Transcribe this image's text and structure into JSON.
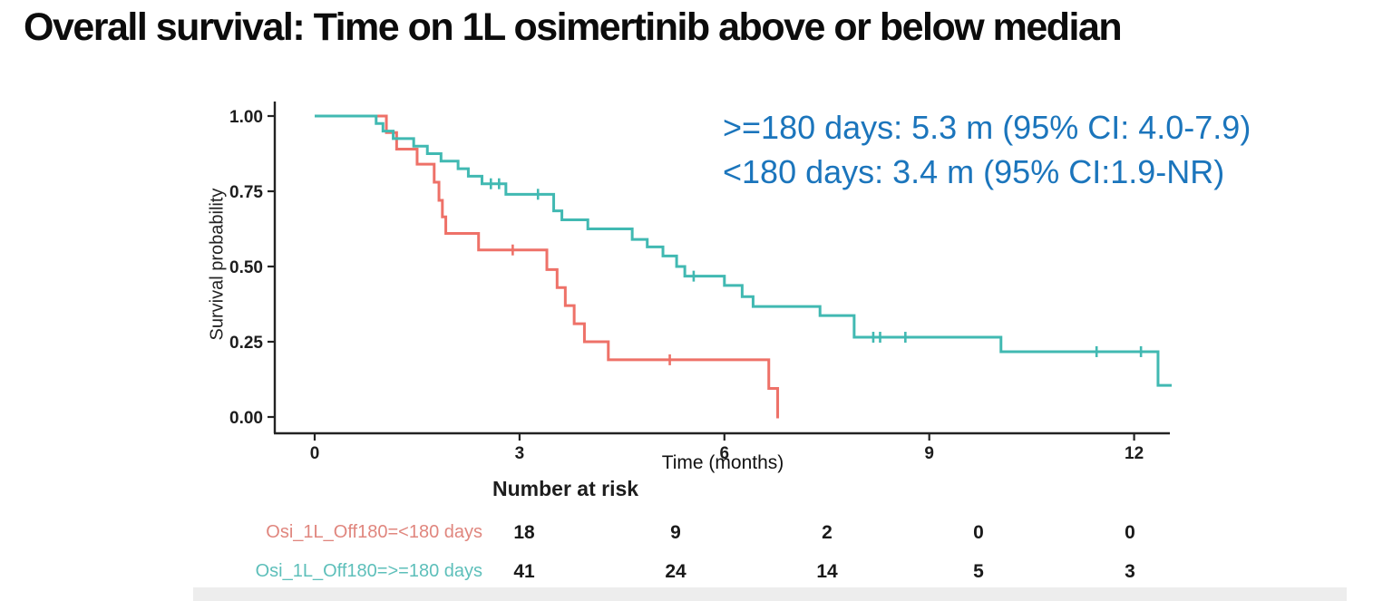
{
  "slide": {
    "title": "Overall survival: Time on 1L osimertinib above or below median",
    "annotation": {
      "color": "#1b75bc",
      "line1": ">=180 days: 5.3 m (95% CI: 4.0-7.9)",
      "line2": "<180 days: 3.4 m (95% CI:1.9-NR)"
    }
  },
  "chart_data": {
    "type": "line",
    "subtype": "kaplan-meier-step",
    "title": "",
    "xlabel": "Time (months)",
    "ylabel": "Survival probability",
    "xlim": [
      0,
      12.6
    ],
    "ylim": [
      0,
      1
    ],
    "x_ticks": [
      0,
      3,
      6,
      9,
      12
    ],
    "y_ticks": [
      "0.00",
      "0.25",
      "0.50",
      "0.75",
      "1.00"
    ],
    "y_tick_values": [
      0,
      0.25,
      0.5,
      0.75,
      1.0
    ],
    "grid": false,
    "legend_position": "none",
    "axis_color": "#232323",
    "series": [
      {
        "name": "Osi_1L_Off180=<180 days",
        "group": "<180 days",
        "median_months": 3.4,
        "ci_95": "1.9-NR",
        "color": "#ee7168",
        "end_t": 6.8,
        "steps": [
          [
            0,
            1.0
          ],
          [
            1.05,
            0.945
          ],
          [
            1.2,
            0.89
          ],
          [
            1.5,
            0.84
          ],
          [
            1.75,
            0.78
          ],
          [
            1.82,
            0.72
          ],
          [
            1.87,
            0.665
          ],
          [
            1.92,
            0.61
          ],
          [
            2.4,
            0.555
          ],
          [
            3.4,
            0.49
          ],
          [
            3.55,
            0.43
          ],
          [
            3.67,
            0.37
          ],
          [
            3.8,
            0.31
          ],
          [
            3.95,
            0.25
          ],
          [
            4.3,
            0.19
          ],
          [
            6.65,
            0.095
          ],
          [
            6.78,
            0.0
          ]
        ],
        "censors": [
          [
            2.9,
            0.555
          ],
          [
            5.2,
            0.19
          ]
        ]
      },
      {
        "name": "Osi_1L_Off180=>=180 days",
        "group": ">=180 days",
        "median_months": 5.3,
        "ci_95": "4.0-7.9",
        "color": "#41b9b2",
        "end_t": 12.55,
        "steps": [
          [
            0,
            1.0
          ],
          [
            0.9,
            0.975
          ],
          [
            1.0,
            0.95
          ],
          [
            1.15,
            0.925
          ],
          [
            1.45,
            0.9
          ],
          [
            1.65,
            0.875
          ],
          [
            1.85,
            0.85
          ],
          [
            2.1,
            0.825
          ],
          [
            2.25,
            0.8
          ],
          [
            2.45,
            0.775
          ],
          [
            2.8,
            0.74
          ],
          [
            3.5,
            0.685
          ],
          [
            3.62,
            0.655
          ],
          [
            4.0,
            0.625
          ],
          [
            4.65,
            0.59
          ],
          [
            4.87,
            0.565
          ],
          [
            5.1,
            0.535
          ],
          [
            5.3,
            0.5
          ],
          [
            5.42,
            0.468
          ],
          [
            6.0,
            0.437
          ],
          [
            6.26,
            0.4
          ],
          [
            6.42,
            0.367
          ],
          [
            7.4,
            0.337
          ],
          [
            7.9,
            0.265
          ],
          [
            10.05,
            0.217
          ],
          [
            12.35,
            0.105
          ]
        ],
        "censors": [
          [
            2.58,
            0.775
          ],
          [
            2.7,
            0.775
          ],
          [
            3.27,
            0.74
          ],
          [
            5.55,
            0.468
          ],
          [
            8.18,
            0.265
          ],
          [
            8.28,
            0.265
          ],
          [
            8.65,
            0.265
          ],
          [
            11.45,
            0.217
          ],
          [
            12.1,
            0.217
          ]
        ]
      }
    ],
    "risk_table": {
      "heading": "Number at risk",
      "times": [
        0,
        3,
        6,
        9,
        12
      ],
      "rows": [
        {
          "label": "Osi_1L_Off180=<180 days",
          "color": "#e0867e",
          "counts": [
            "18",
            "9",
            "2",
            "0",
            "0"
          ]
        },
        {
          "label": "Osi_1L_Off180=>=180 days",
          "color": "#5dbfba",
          "counts": [
            "41",
            "24",
            "14",
            "5",
            "3"
          ]
        }
      ]
    }
  }
}
